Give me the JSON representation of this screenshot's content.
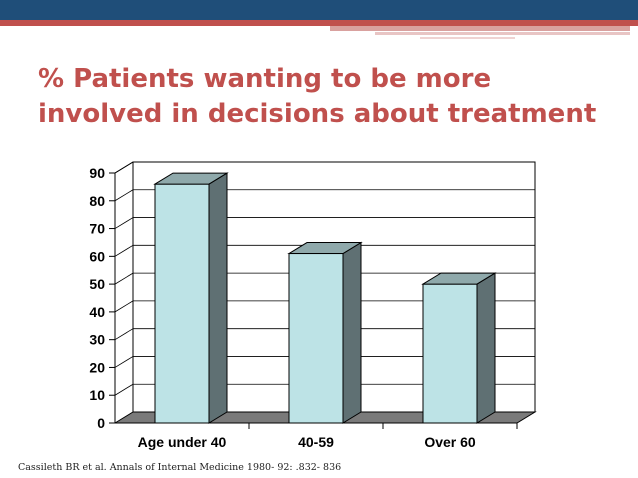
{
  "slide": {
    "title_line1": "% Patients wanting to be more",
    "title_line2": "involved in decisions about treatment",
    "citation": "Cassileth BR et al. Annals of Internal Medicine 1980- 92: .832- 836"
  },
  "colors": {
    "banner_dark": "#1f4e79",
    "banner_red": "#c0504d",
    "title": "#c0504d",
    "bar_front": "#bde3e6",
    "bar_side": "#5f7073",
    "bar_top": "#8fa9ab"
  },
  "chart_data": {
    "type": "bar",
    "style": "3d",
    "categories": [
      "Age under 40",
      "40-59",
      "Over 60"
    ],
    "values": [
      86,
      61,
      50
    ],
    "ylim": [
      0,
      90
    ],
    "yticks": [
      "0",
      "10",
      "20",
      "30",
      "40",
      "50",
      "60",
      "70",
      "80",
      "90"
    ],
    "grid": true,
    "legend": "none",
    "title": "",
    "xlabel": "",
    "ylabel": ""
  }
}
